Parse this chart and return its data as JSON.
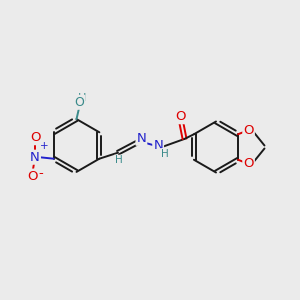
{
  "bg_color": "#ebebeb",
  "bond_color": "#1a1a1a",
  "atom_colors": {
    "O": "#dd0000",
    "N": "#2222cc",
    "H": "#3a8a8a",
    "C": "#1a1a1a"
  },
  "figsize": [
    3.0,
    3.0
  ],
  "dpi": 100
}
